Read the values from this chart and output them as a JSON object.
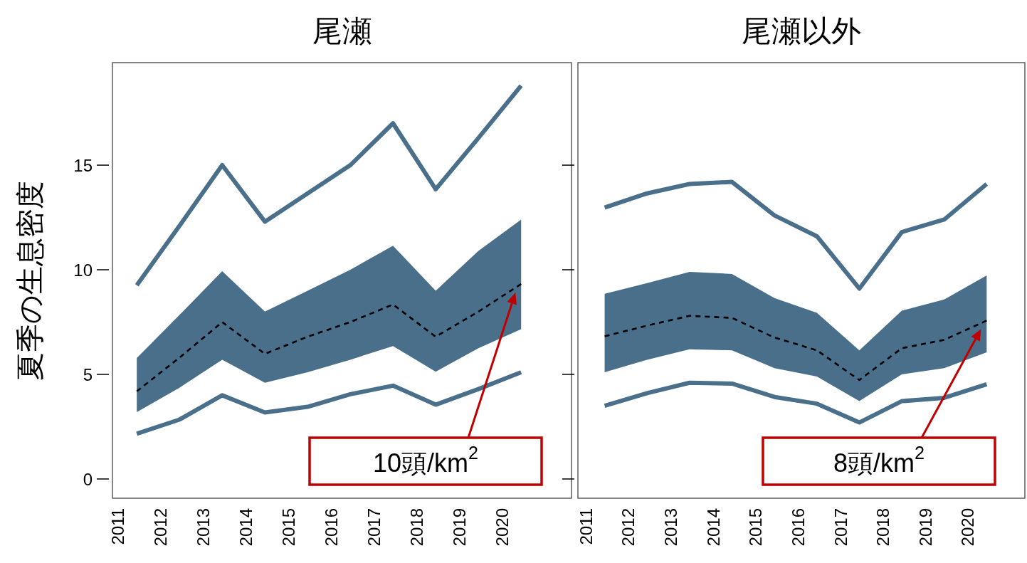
{
  "chart_data": [
    {
      "type": "line",
      "title": "尾瀬",
      "ylabel": "夏季の生息密度",
      "color": "#4a6f8a",
      "x": [
        2011.45,
        2012.45,
        2013.45,
        2014.45,
        2015.45,
        2016.45,
        2017.45,
        2018.45,
        2019.45,
        2020.45
      ],
      "xlim": [
        2010.88,
        2021.63
      ],
      "xticks": [
        2011,
        2012,
        2013,
        2014,
        2015,
        2016,
        2017,
        2018,
        2019,
        2020
      ],
      "ylim": [
        -0.92,
        19.9
      ],
      "yticks": [
        0,
        5,
        10,
        15
      ],
      "series": [
        {
          "color": "#4a6f8a",
          "line_style": "solid",
          "values": [
            9.26,
            12.1,
            15.0,
            12.3,
            13.65,
            15.0,
            17.0,
            13.85,
            16.3,
            18.8
          ]
        },
        {
          "color": "#000000",
          "line_style": "dashed",
          "values": [
            4.19,
            5.8,
            7.5,
            5.98,
            6.8,
            7.5,
            8.34,
            6.8,
            8.0,
            9.32
          ],
          "lower": [
            3.2,
            4.36,
            5.7,
            4.6,
            5.1,
            5.7,
            6.35,
            5.13,
            6.25,
            7.16
          ],
          "upper": [
            5.78,
            7.84,
            9.93,
            8.0,
            9.0,
            10.0,
            11.15,
            9.0,
            10.9,
            12.4
          ]
        },
        {
          "color": "#4a6f8a",
          "line_style": "solid",
          "values": [
            2.16,
            2.84,
            4.0,
            3.18,
            3.45,
            4.05,
            4.46,
            3.55,
            4.3,
            5.1
          ]
        }
      ],
      "annotations": [
        "10頭/km$^{2}$"
      ]
    },
    {
      "type": "line",
      "title": "尾瀬以外",
      "color": "#4a6f8a",
      "tick_labels": "x",
      "x": [
        2011.45,
        2012.45,
        2013.45,
        2014.45,
        2015.45,
        2016.45,
        2017.45,
        2018.45,
        2019.45,
        2020.45
      ],
      "xlim": [
        2010.82,
        2021.35
      ],
      "xticks": [
        2011,
        2012,
        2013,
        2014,
        2015,
        2016,
        2017,
        2018,
        2019,
        2020
      ],
      "ylim": [
        -0.92,
        19.9
      ],
      "yticks": [
        0,
        5,
        10,
        15
      ],
      "series": [
        {
          "color": "#4a6f8a",
          "line_style": "solid",
          "values": [
            12.97,
            13.65,
            14.1,
            14.2,
            12.6,
            11.6,
            9.1,
            11.8,
            12.4,
            14.1
          ]
        },
        {
          "color": "#000000",
          "line_style": "dashed",
          "values": [
            6.82,
            7.33,
            7.8,
            7.7,
            6.76,
            6.15,
            4.73,
            6.25,
            6.65,
            7.57
          ],
          "lower": [
            5.1,
            5.7,
            6.2,
            6.15,
            5.3,
            4.9,
            3.72,
            5.0,
            5.3,
            6.05
          ],
          "upper": [
            8.85,
            9.36,
            9.9,
            9.8,
            8.65,
            7.94,
            6.15,
            8.04,
            8.58,
            9.73
          ]
        },
        {
          "color": "#4a6f8a",
          "line_style": "solid",
          "values": [
            3.5,
            4.1,
            4.6,
            4.56,
            3.92,
            3.6,
            2.7,
            3.72,
            3.88,
            4.53
          ]
        }
      ],
      "annotations": [
        "8頭/km$^{2}$"
      ]
    }
  ]
}
